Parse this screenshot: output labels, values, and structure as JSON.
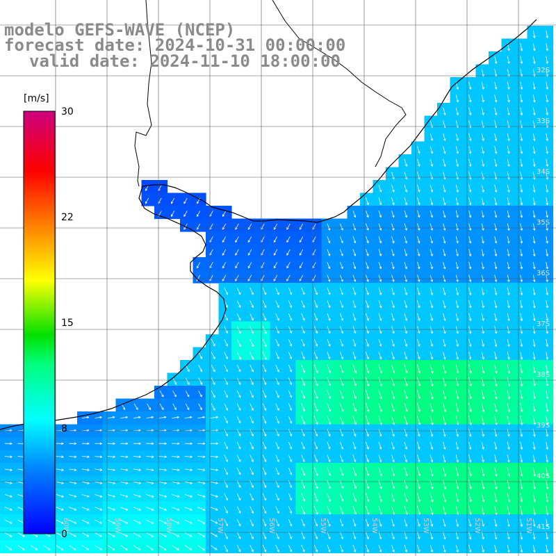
{
  "header": {
    "model": "modelo GEFS-WAVE (NCEP)",
    "forecast": "forecast date: 2024-10-31 00:00:00",
    "valid": "valid date: 2024-11-10 18:00:00"
  },
  "colorbar": {
    "unit": "[m/s]",
    "ticks": [
      "30",
      "22",
      "15",
      "8",
      "0"
    ]
  },
  "axes": {
    "lon_labels": [
      "60W",
      "59W",
      "58W",
      "57W",
      "56W",
      "55W",
      "54W",
      "53W",
      "52W",
      "51W"
    ],
    "lat_labels": [
      "32S",
      "33S",
      "34S",
      "35S",
      "36S",
      "37S",
      "38S",
      "39S",
      "40S",
      "41S"
    ]
  },
  "colors": {
    "land": "#ffffff",
    "coast": "#000000",
    "grid": "#555555",
    "arrow": "#ffffff"
  }
}
